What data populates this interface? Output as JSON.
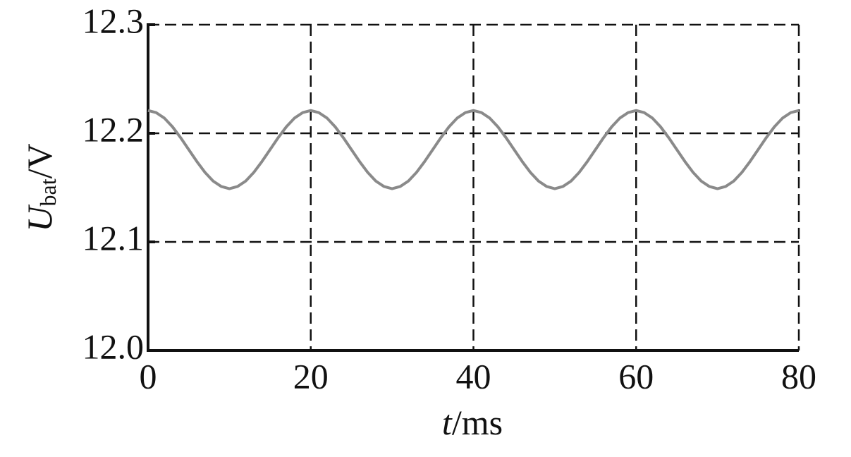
{
  "chart_data": {
    "type": "line",
    "xlabel": {
      "symbol": "t",
      "unit": "/ms"
    },
    "ylabel": {
      "symbol": "U",
      "subscript": "bat",
      "unit": "/V"
    },
    "x": [
      0,
      1,
      2,
      3,
      4,
      5,
      6,
      7,
      8,
      9,
      10,
      11,
      12,
      13,
      14,
      15,
      16,
      17,
      18,
      19,
      20,
      21,
      22,
      23,
      24,
      25,
      26,
      27,
      28,
      29,
      30,
      31,
      32,
      33,
      34,
      35,
      36,
      37,
      38,
      39,
      40,
      41,
      42,
      43,
      44,
      45,
      46,
      47,
      48,
      49,
      50,
      51,
      52,
      53,
      54,
      55,
      56,
      57,
      58,
      59,
      60,
      61,
      62,
      63,
      64,
      65,
      66,
      67,
      68,
      69,
      70,
      71,
      72,
      73,
      74,
      75,
      76,
      77,
      78,
      79,
      80
    ],
    "series": [
      {
        "color": "#8a8a8a",
        "values": [
          12.221,
          12.219,
          12.214,
          12.206,
          12.196,
          12.185,
          12.174,
          12.164,
          12.156,
          12.151,
          12.149,
          12.151,
          12.156,
          12.164,
          12.174,
          12.185,
          12.196,
          12.206,
          12.214,
          12.219,
          12.221,
          12.219,
          12.214,
          12.206,
          12.196,
          12.185,
          12.174,
          12.164,
          12.156,
          12.151,
          12.149,
          12.151,
          12.156,
          12.164,
          12.174,
          12.185,
          12.196,
          12.206,
          12.214,
          12.219,
          12.221,
          12.219,
          12.214,
          12.206,
          12.196,
          12.185,
          12.174,
          12.164,
          12.156,
          12.151,
          12.149,
          12.151,
          12.156,
          12.164,
          12.174,
          12.185,
          12.196,
          12.206,
          12.214,
          12.219,
          12.221,
          12.219,
          12.214,
          12.206,
          12.196,
          12.185,
          12.174,
          12.164,
          12.156,
          12.151,
          12.149,
          12.151,
          12.156,
          12.164,
          12.174,
          12.185,
          12.196,
          12.206,
          12.214,
          12.219,
          12.221
        ]
      }
    ],
    "xlim": [
      0,
      80
    ],
    "xticks": [
      0,
      20,
      40,
      60,
      80
    ],
    "ylim": [
      12.0,
      12.3
    ],
    "yticks": [
      {
        "value": 12.0,
        "label": "12.0"
      },
      12.1,
      12.2,
      12.3
    ],
    "grid": true
  }
}
